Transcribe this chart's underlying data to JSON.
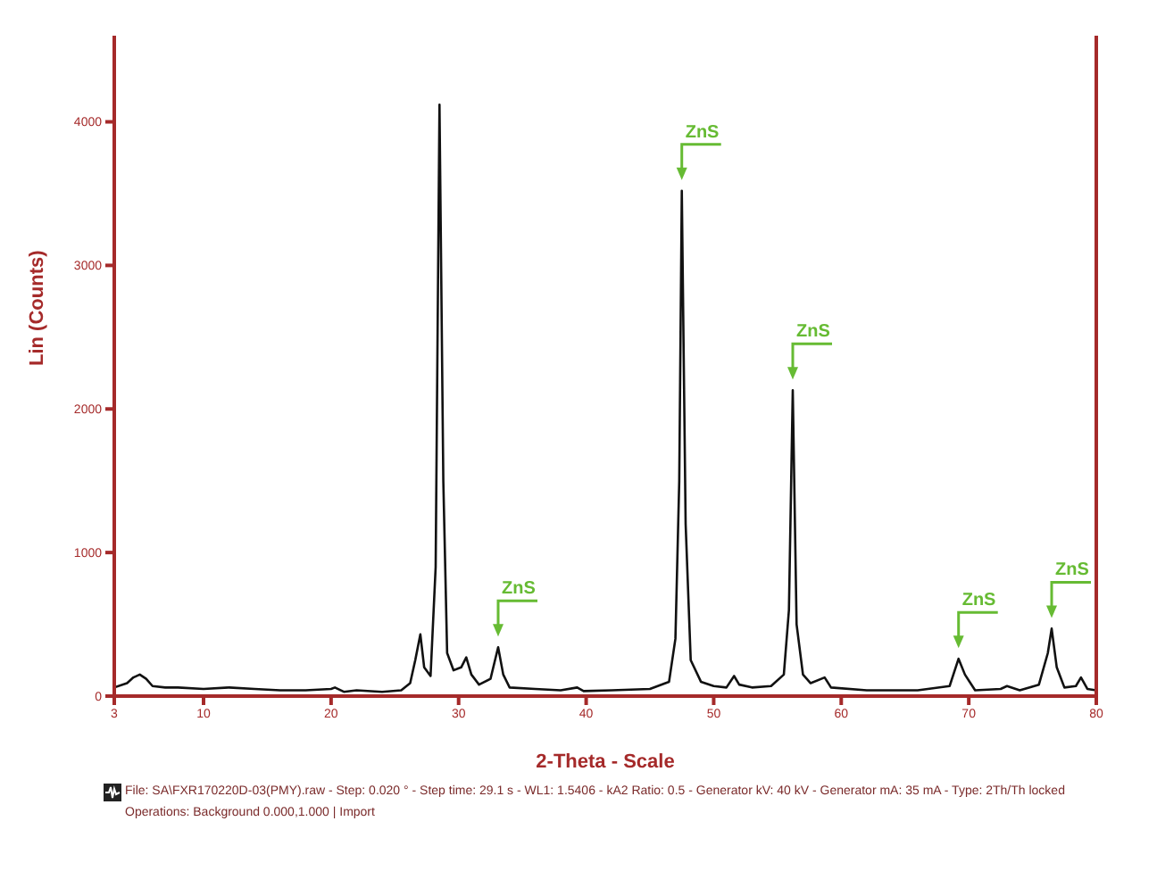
{
  "chart_data": {
    "type": "line",
    "xlabel": "2-Theta - Scale",
    "ylabel": "Lin (Counts)",
    "xlim": [
      3,
      80
    ],
    "xticks": [
      3,
      10,
      20,
      30,
      40,
      50,
      60,
      70,
      80
    ],
    "ylim": [
      0,
      4600
    ],
    "yticks": [
      0,
      1000,
      2000,
      3000,
      4000
    ],
    "grid": false,
    "legend": false,
    "marker": "none",
    "line_style": "solid",
    "x": [
      3,
      4,
      4.5,
      5,
      5.5,
      6,
      7,
      8,
      10,
      12,
      14,
      16,
      18,
      20,
      20.3,
      21,
      22,
      24,
      25.5,
      26.2,
      26.6,
      27,
      27.3,
      27.8,
      28.2,
      28.5,
      28.8,
      29.1,
      29.6,
      30.2,
      30.6,
      31,
      31.6,
      32.5,
      33.1,
      33.5,
      34,
      36,
      38,
      39.3,
      39.8,
      42,
      45,
      46.5,
      47,
      47.3,
      47.5,
      47.8,
      48.2,
      49,
      50,
      51,
      51.6,
      52,
      53,
      54.5,
      55.5,
      55.9,
      56.2,
      56.5,
      57,
      57.6,
      58.7,
      59.2,
      62,
      66,
      68.5,
      69.2,
      69.7,
      70.5,
      72.5,
      73,
      74,
      75.5,
      76.2,
      76.5,
      76.9,
      77.5,
      78.4,
      78.8,
      79.3,
      80
    ],
    "series": [
      {
        "color": "#111111",
        "values": [
          60,
          90,
          130,
          150,
          120,
          70,
          60,
          60,
          50,
          60,
          50,
          40,
          40,
          50,
          60,
          30,
          40,
          30,
          40,
          90,
          250,
          430,
          200,
          140,
          900,
          4120,
          1500,
          300,
          180,
          200,
          270,
          150,
          80,
          120,
          340,
          150,
          60,
          50,
          40,
          60,
          35,
          40,
          50,
          100,
          400,
          1500,
          3520,
          1200,
          250,
          100,
          70,
          60,
          140,
          80,
          60,
          70,
          150,
          600,
          2130,
          500,
          150,
          90,
          130,
          60,
          40,
          40,
          70,
          260,
          150,
          40,
          50,
          70,
          40,
          80,
          300,
          470,
          200,
          60,
          70,
          130,
          50,
          40
        ]
      }
    ],
    "annotations": [
      {
        "text": "ZnS",
        "x": 33.1,
        "y": 340
      },
      {
        "text": "ZnS",
        "x": 47.5,
        "y": 3520
      },
      {
        "text": "ZnS",
        "x": 56.2,
        "y": 2130
      },
      {
        "text": "ZnS",
        "x": 69.2,
        "y": 260
      },
      {
        "text": "ZnS",
        "x": 76.5,
        "y": 470
      },
      "File: SA\\FXR170220D-03(PMY).raw - Step: 0.020 ° - Step time: 29.1 s - WL1: 1.5406 - kA2 Ratio: 0.5 - Generator kV: 40 kV - Generator mA: 35 mA - Type: 2Th/Th locked",
      "Operations: Background 0.000,1.000 | Import"
    ]
  }
}
